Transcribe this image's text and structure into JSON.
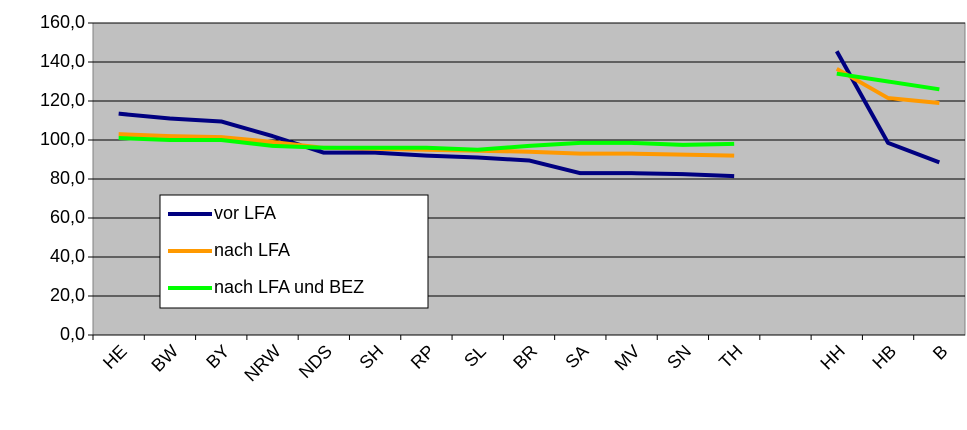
{
  "chart_data": {
    "type": "line",
    "categories": [
      "HE",
      "BW",
      "BY",
      "NRW",
      "NDS",
      "SH",
      "RP",
      "SL",
      "BR",
      "SA",
      "MV",
      "SN",
      "TH",
      null,
      "HH",
      "HB",
      "B"
    ],
    "series": [
      {
        "name": "vor LFA",
        "color": "#000080",
        "values": [
          113.5,
          111,
          109.5,
          102,
          93.5,
          93.5,
          92,
          91,
          89.5,
          83,
          83,
          82.5,
          81.5,
          null,
          145.5,
          98.5,
          88.5
        ]
      },
      {
        "name": "nach LFA",
        "color": "#ff9900",
        "values": [
          103,
          102,
          101.5,
          99,
          96,
          95.5,
          95,
          94.5,
          94,
          93,
          93,
          92.5,
          92,
          null,
          136.5,
          121.5,
          119
        ]
      },
      {
        "name": "nach LFA und BEZ",
        "color": "#00ff00",
        "values": [
          101,
          100,
          100,
          97,
          96,
          96,
          96,
          95,
          97,
          98.5,
          98.5,
          97.5,
          98,
          null,
          134,
          130,
          126
        ]
      }
    ],
    "ylim": [
      0,
      160
    ],
    "yticks": [
      {
        "value": 0,
        "label": "0,0"
      },
      {
        "value": 20,
        "label": "20,0"
      },
      {
        "value": 40,
        "label": "40,0"
      },
      {
        "value": 60,
        "label": "60,0"
      },
      {
        "value": 80,
        "label": "80,0"
      },
      {
        "value": 100,
        "label": "100,0"
      },
      {
        "value": 120,
        "label": "120,0"
      },
      {
        "value": 140,
        "label": "140,0"
      },
      {
        "value": 160,
        "label": "160,0"
      }
    ],
    "grid": true
  }
}
